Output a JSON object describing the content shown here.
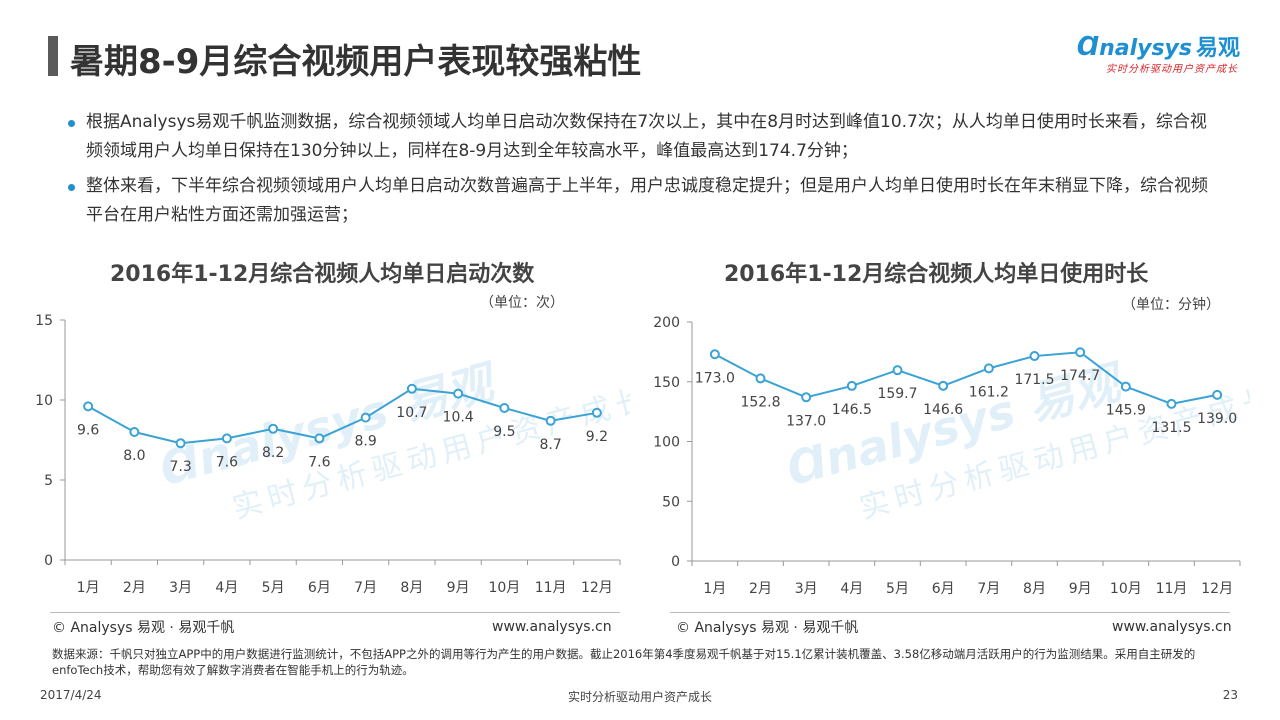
{
  "header": {
    "title": "暑期8-9月综合视频用户表现较强粘性",
    "logo_brand": "nalysys",
    "logo_brand_cn": "易观",
    "logo_slogan": "实时分析驱动用户资产成长"
  },
  "bullets": [
    "根据Analysys易观千帆监测数据，综合视频领域人均单日启动次数保持在7次以上，其中在8月时达到峰值10.7次；从人均单日使用时长来看，综合视频领域用户人均单日保持在130分钟以上，同样在8-9月达到全年较高水平，峰值最高达到174.7分钟；",
    "整体来看，下半年综合视频领域用户人均单日启动次数普遍高于上半年，用户忠诚度稳定提升；但是用户人均单日使用时长在年末稍显下降，综合视频平台在用户粘性方面还需加强运营；"
  ],
  "chart_data": [
    {
      "type": "line",
      "title": "2016年1-12月综合视频人均单日启动次数",
      "unit": "（单位：次）",
      "categories": [
        "1月",
        "2月",
        "3月",
        "4月",
        "5月",
        "6月",
        "7月",
        "8月",
        "9月",
        "10月",
        "11月",
        "12月"
      ],
      "values": [
        9.6,
        8.0,
        7.3,
        7.6,
        8.2,
        7.6,
        8.9,
        10.7,
        10.4,
        9.5,
        8.7,
        9.2
      ],
      "value_labels": [
        "9.6",
        "8.0",
        "7.3",
        "7.6",
        "8.2",
        "7.6",
        "8.9",
        "10.7",
        "10.4",
        "9.5",
        "8.7",
        "9.2"
      ],
      "ylim": [
        0,
        15
      ],
      "yticks": [
        "0",
        "5",
        "10",
        "15"
      ],
      "color": "#3aa2d4",
      "grid": false
    },
    {
      "type": "line",
      "title": "2016年1-12月综合视频人均单日使用时长",
      "unit": "（单位：分钟）",
      "categories": [
        "1月",
        "2月",
        "3月",
        "4月",
        "5月",
        "6月",
        "7月",
        "8月",
        "9月",
        "10月",
        "11月",
        "12月"
      ],
      "values": [
        173.0,
        152.8,
        137.0,
        146.5,
        159.7,
        146.6,
        161.2,
        171.5,
        174.7,
        145.9,
        131.5,
        139.0
      ],
      "value_labels": [
        "173.0",
        "152.8",
        "137.0",
        "146.5",
        "159.7",
        "146.6",
        "161.2",
        "171.5",
        "174.7",
        "145.9",
        "131.5",
        "139.0"
      ],
      "ylim": [
        0,
        200
      ],
      "yticks": [
        "0",
        "50",
        "100",
        "150",
        "200"
      ],
      "color": "#3aa2d4",
      "grid": false
    }
  ],
  "watermark": {
    "brand": "nalysys",
    "brand_cn": "易观",
    "slogan": "实时分析驱动用户资产成长"
  },
  "footer": {
    "copyright": "© Analysys 易观 · 易观千帆",
    "site": "www.analysys.cn",
    "source_note": "数据来源：千帆只对独立APP中的用户数据进行监测统计，不包括APP之外的调用等行为产生的用户数据。截止2016年第4季度易观千帆基于对15.1亿累计装机覆盖、3.58亿移动端月活跃用户的行为监测结果。采用自主研发的enfoTech技术，帮助您有效了解数字消费者在智能手机上的行为轨迹。",
    "date": "2017/4/24",
    "slogan": "实时分析驱动用户资产成长",
    "page_number": "23"
  }
}
